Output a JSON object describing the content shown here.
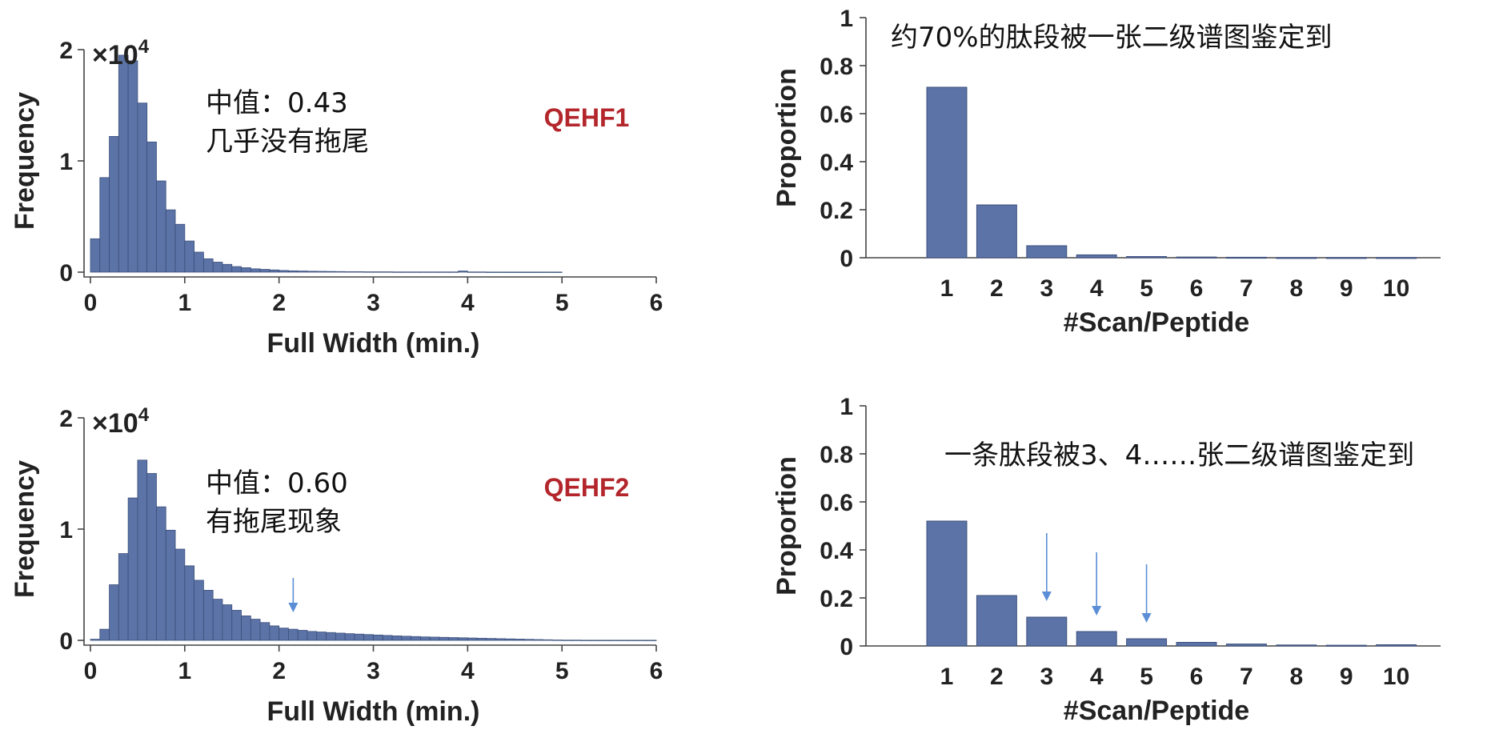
{
  "colors": {
    "bar": "#5b73a6",
    "bar_edge": "#3c4f7c",
    "tag": "#b3262b",
    "arrow": "#5b8ed6"
  },
  "chart_data": [
    {
      "id": "qehf1-hist",
      "type": "bar",
      "xlabel": "Full Width (min.)",
      "ylabel": "Frequency",
      "y_multiplier": {
        "base": "×10",
        "exp": "4"
      },
      "xlim": [
        0,
        6
      ],
      "ylim": [
        0,
        2
      ],
      "xticks": [
        "0",
        "1",
        "2",
        "3",
        "4",
        "5",
        "6"
      ],
      "yticks": [
        "0",
        "1",
        "2"
      ],
      "bin_start": 0.05,
      "bin_width": 0.1,
      "values": [
        0.3,
        0.85,
        1.22,
        1.95,
        1.9,
        1.52,
        1.17,
        0.82,
        0.56,
        0.43,
        0.28,
        0.18,
        0.12,
        0.09,
        0.07,
        0.05,
        0.04,
        0.03,
        0.025,
        0.02,
        0.015,
        0.012,
        0.01,
        0.008,
        0.007,
        0.006,
        0.005,
        0.004,
        0.004,
        0.003,
        0.003,
        0.003,
        0.002,
        0.002,
        0.002,
        0.002,
        0.002,
        0.002,
        0.002,
        0.01,
        0.002,
        0.002,
        0.001,
        0.001,
        0.001,
        0.001,
        0.001,
        0.001,
        0.001,
        0.001
      ],
      "annotation": [
        "中值：0.43",
        "几乎没有拖尾"
      ],
      "tag": "QEHF1"
    },
    {
      "id": "qehf1-prop",
      "type": "bar",
      "xlabel": "#Scan/Peptide",
      "ylabel": "Proportion",
      "ylim": [
        0,
        1
      ],
      "yticks": [
        "0",
        "0.2",
        "0.4",
        "0.6",
        "0.8",
        "1"
      ],
      "categories": [
        "1",
        "2",
        "3",
        "4",
        "5",
        "6",
        "7",
        "8",
        "9",
        "10"
      ],
      "values": [
        0.71,
        0.22,
        0.05,
        0.012,
        0.005,
        0.003,
        0.002,
        0.001,
        0.001,
        0.001
      ],
      "annotation": "约70%的肽段被一张二级谱图鉴定到"
    },
    {
      "id": "qehf2-hist",
      "type": "bar",
      "xlabel": "Full Width (min.)",
      "ylabel": "Frequency",
      "y_multiplier": {
        "base": "×10",
        "exp": "4"
      },
      "xlim": [
        0,
        6
      ],
      "ylim": [
        0,
        2
      ],
      "xticks": [
        "0",
        "1",
        "2",
        "3",
        "4",
        "5",
        "6"
      ],
      "yticks": [
        "0",
        "1",
        "2"
      ],
      "bin_start": 0.05,
      "bin_width": 0.1,
      "values": [
        0.01,
        0.1,
        0.5,
        0.78,
        1.28,
        1.62,
        1.5,
        1.2,
        0.99,
        0.82,
        0.67,
        0.54,
        0.45,
        0.37,
        0.32,
        0.27,
        0.22,
        0.19,
        0.16,
        0.13,
        0.11,
        0.1,
        0.09,
        0.08,
        0.075,
        0.07,
        0.065,
        0.06,
        0.056,
        0.052,
        0.048,
        0.044,
        0.04,
        0.037,
        0.034,
        0.031,
        0.029,
        0.027,
        0.025,
        0.023,
        0.021,
        0.019,
        0.017,
        0.015,
        0.013,
        0.011,
        0.009,
        0.007,
        0.005,
        0.003,
        0.002,
        0.002,
        0.001,
        0.001,
        0.001,
        0.001,
        0.001,
        0.001,
        0.001,
        0.001
      ],
      "annotation": [
        "中值：0.60",
        "有拖尾现象"
      ],
      "tag": "QEHF2",
      "arrows_at_x": [
        2.15
      ]
    },
    {
      "id": "qehf2-prop",
      "type": "bar",
      "xlabel": "#Scan/Peptide",
      "ylabel": "Proportion",
      "ylim": [
        0,
        1
      ],
      "yticks": [
        "0",
        "0.2",
        "0.4",
        "0.6",
        "0.8",
        "1"
      ],
      "categories": [
        "1",
        "2",
        "3",
        "4",
        "5",
        "6",
        "7",
        "8",
        "9",
        "10"
      ],
      "values": [
        0.52,
        0.21,
        0.12,
        0.06,
        0.03,
        0.015,
        0.008,
        0.004,
        0.003,
        0.005
      ],
      "annotation": "一条肽段被3、4……张二级谱图鉴定到",
      "arrows_at": [
        "3",
        "4",
        "5"
      ]
    }
  ]
}
